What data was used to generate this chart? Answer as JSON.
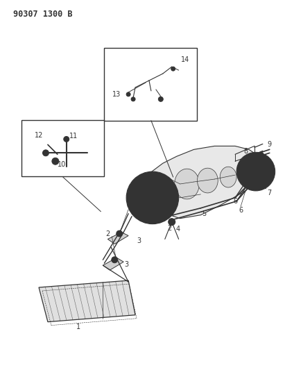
{
  "title_code": "90307 1300 B",
  "bg_color": "#ffffff",
  "fig_width": 4.11,
  "fig_height": 5.33,
  "dpi": 100,
  "line_color": "#333333",
  "label_fontsize": 7,
  "title_fontsize": 8.5
}
